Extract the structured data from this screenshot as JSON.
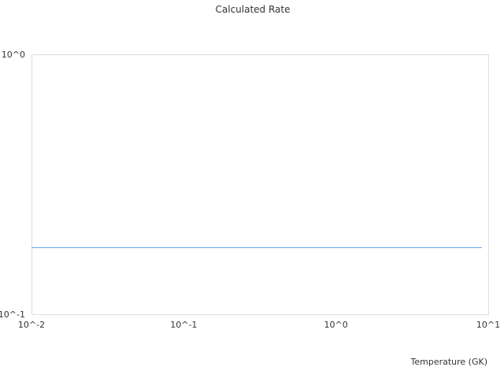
{
  "chart_data": {
    "type": "line",
    "title": "Calculated Rate",
    "xlabel": "Temperature (GK)",
    "ylabel": "",
    "xscale": "log",
    "yscale": "log",
    "xlim": [
      0.01,
      10
    ],
    "ylim": [
      0.1,
      1
    ],
    "x_ticks": [
      {
        "value": 0.01,
        "label": "10^-2"
      },
      {
        "value": 0.1,
        "label": "10^-1"
      },
      {
        "value": 1,
        "label": "10^0"
      },
      {
        "value": 10,
        "label": "10^1"
      }
    ],
    "y_ticks": [
      {
        "value": 0.1,
        "label": "10^-1"
      },
      {
        "value": 1,
        "label": "10^0"
      }
    ],
    "grid": false,
    "series": [
      {
        "color": "#5aa9f0",
        "x": [
          0.01,
          9.1
        ],
        "y": [
          0.181,
          0.181
        ]
      }
    ]
  }
}
